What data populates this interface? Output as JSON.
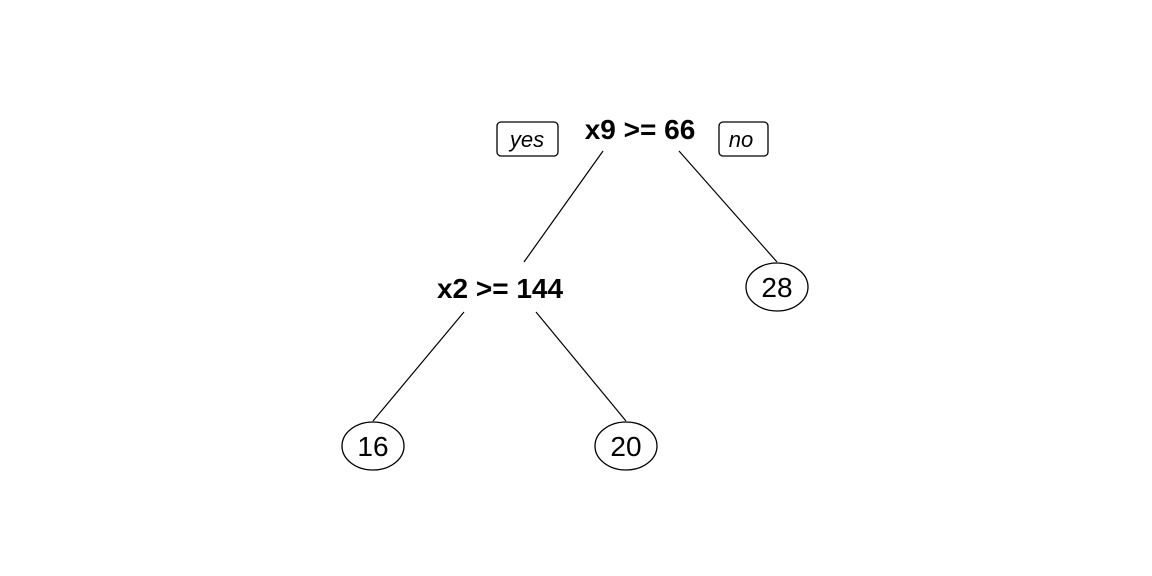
{
  "tree": {
    "root": {
      "split": "x9 >= 66",
      "yes_label": "yes",
      "no_label": "no"
    },
    "internal": {
      "split": "x2 >= 144"
    },
    "leaves": [
      "16",
      "20",
      "28"
    ]
  },
  "colors": {
    "line": "#000000",
    "background": "#ffffff",
    "leaf_fill": "#ffffff"
  }
}
